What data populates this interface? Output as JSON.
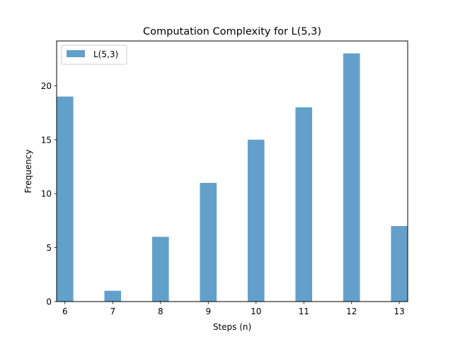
{
  "chart_data": {
    "type": "bar",
    "title": "Computation Complexity for L(5,3)",
    "xlabel": "Steps (n)",
    "ylabel": "Frequency",
    "x": [
      6,
      7,
      8,
      9,
      10,
      11,
      12,
      13
    ],
    "series": [
      {
        "name": "L(5,3)",
        "values": [
          19,
          1,
          6,
          11,
          15,
          18,
          23,
          7
        ],
        "color": "#1f77b4"
      }
    ],
    "xticks": [
      "6",
      "7",
      "8",
      "9",
      "10",
      "11",
      "12",
      "13"
    ],
    "yticks": [
      "0",
      "5",
      "10",
      "15",
      "20"
    ],
    "xlim": [
      5.825,
      13.175
    ],
    "ylim": [
      0,
      24.15
    ],
    "legend_position": "upper left",
    "grid": false
  }
}
